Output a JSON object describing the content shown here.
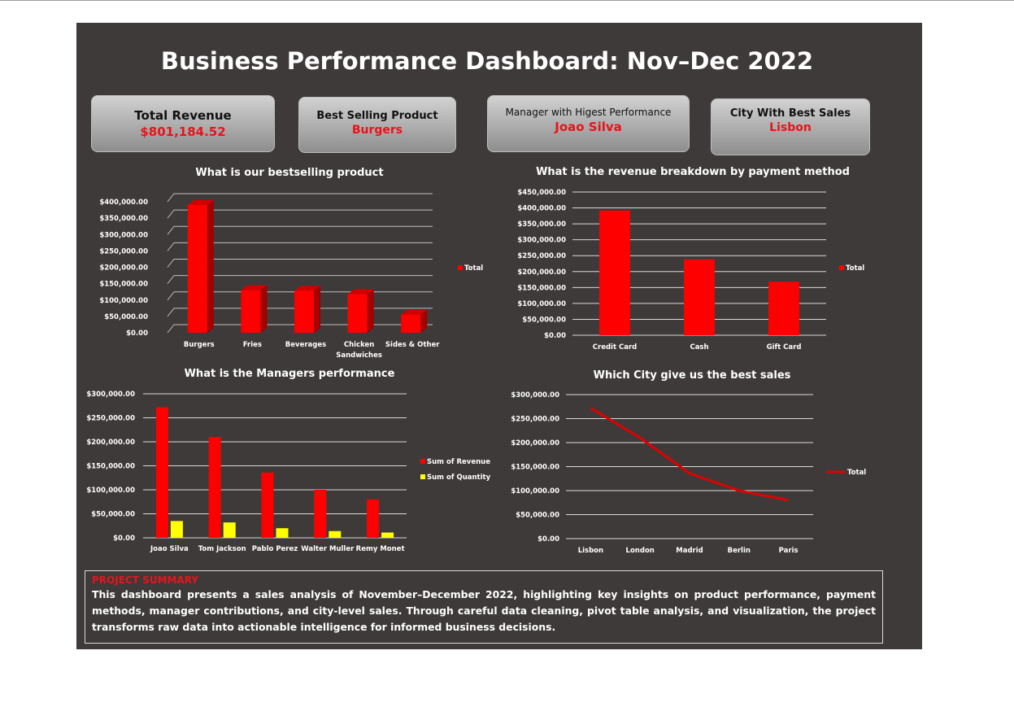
{
  "header": {
    "title": "Business Performance Dashboard: Nov–Dec 2022"
  },
  "kpis": {
    "revenue": {
      "label": "Total Revenue",
      "value": "$801,184.52"
    },
    "product": {
      "label": "Best Selling Product",
      "value": "Burgers"
    },
    "manager": {
      "label": "Manager with Higest Performance",
      "value": "Joao Silva"
    },
    "city": {
      "label": "City With Best Sales",
      "value": "Lisbon"
    }
  },
  "colors": {
    "background": "#3e3a39",
    "accent_red": "#ff0000",
    "accent_yellow": "#ffff00",
    "kpi_value": "#e8141b"
  },
  "chart_data": [
    {
      "id": "product",
      "type": "bar",
      "title": "What is our bestselling product",
      "categories": [
        "Burgers",
        "Fries",
        "Beverages",
        "Chicken Sandwiches",
        "Sides & Other"
      ],
      "series": [
        {
          "name": "Total",
          "values": [
            390000,
            130000,
            128000,
            118000,
            55000
          ]
        }
      ],
      "ylim": [
        0,
        400000
      ],
      "ticks": [
        "$0.00",
        "$50,000.00",
        "$100,000.00",
        "$150,000.00",
        "$200,000.00",
        "$250,000.00",
        "$300,000.00",
        "$350,000.00",
        "$400,000.00"
      ],
      "legend": "right",
      "grid": true
    },
    {
      "id": "payment",
      "type": "bar",
      "title": "What is the revenue breakdown by payment method",
      "categories": [
        "Credit Card",
        "Cash",
        "Gift Card"
      ],
      "series": [
        {
          "name": "Total",
          "values": [
            392000,
            238000,
            168000
          ]
        }
      ],
      "ylim": [
        0,
        450000
      ],
      "ticks": [
        "$0.00",
        "$50,000.00",
        "$100,000.00",
        "$150,000.00",
        "$200,000.00",
        "$250,000.00",
        "$300,000.00",
        "$350,000.00",
        "$400,000.00",
        "$450,000.00"
      ],
      "legend": "right",
      "grid": true
    },
    {
      "id": "managers",
      "type": "bar",
      "title": "What is the Managers performance",
      "categories": [
        "Joao Silva",
        "Tom Jackson",
        "Pablo Perez",
        "Walter Muller",
        "Remy Monet"
      ],
      "series": [
        {
          "name": "Sum of Revenue",
          "values": [
            272000,
            210000,
            136000,
            100000,
            80000
          ]
        },
        {
          "name": "Sum of Quantity",
          "values": [
            35000,
            32000,
            20000,
            14000,
            11000
          ]
        }
      ],
      "ylim": [
        0,
        300000
      ],
      "ticks": [
        "$0.00",
        "$50,000.00",
        "$100,000.00",
        "$150,000.00",
        "$200,000.00",
        "$250,000.00",
        "$300,000.00"
      ],
      "legend": "right",
      "grid": true
    },
    {
      "id": "cities",
      "type": "line",
      "title": "Which City give us the best sales",
      "categories": [
        "Lisbon",
        "London",
        "Madrid",
        "Berlin",
        "Paris"
      ],
      "series": [
        {
          "name": "Total",
          "values": [
            272000,
            210000,
            136000,
            100000,
            80000
          ]
        }
      ],
      "ylim": [
        0,
        300000
      ],
      "ticks": [
        "$0.00",
        "$50,000.00",
        "$100,000.00",
        "$150,000.00",
        "$200,000.00",
        "$250,000.00",
        "$300,000.00"
      ],
      "legend": "right",
      "grid": true
    }
  ],
  "summary": {
    "heading": "PROJECT SUMMARY",
    "text": "This dashboard presents a sales analysis of November–December 2022, highlighting key insights on product performance, payment methods, manager contributions, and city-level sales. Through careful data cleaning, pivot table analysis, and visualization, the project transforms raw data into actionable intelligence for informed business decisions."
  }
}
